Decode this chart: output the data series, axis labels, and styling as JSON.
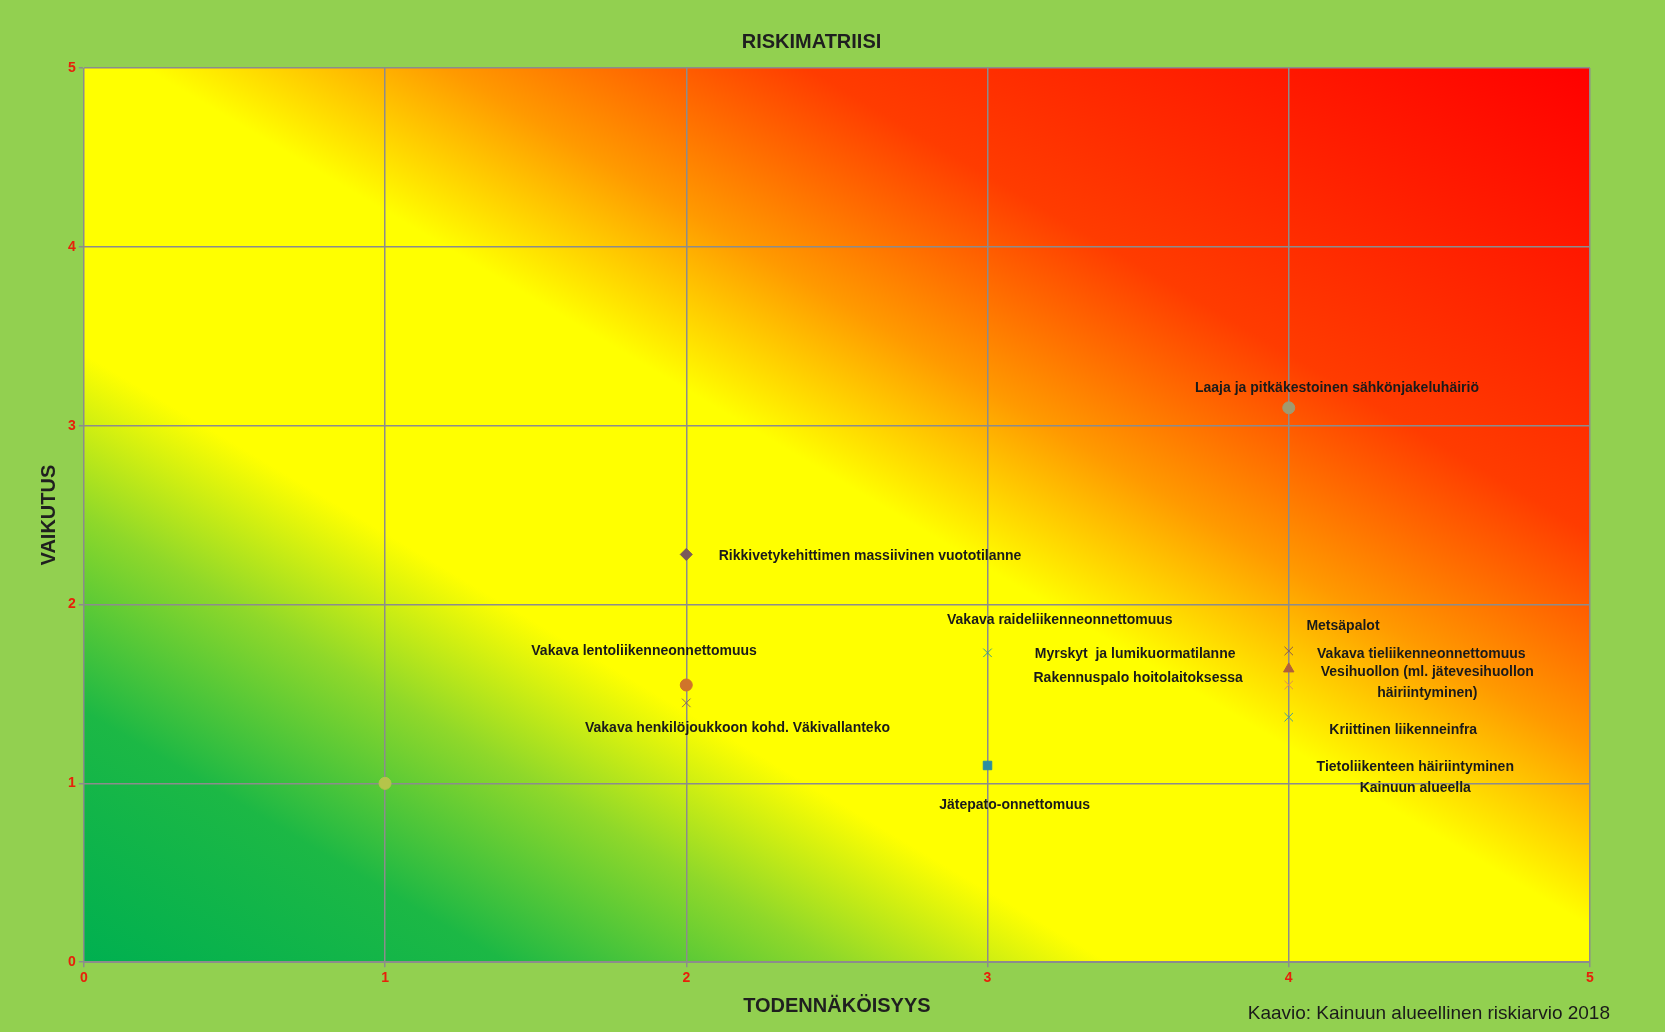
{
  "chart_data": {
    "type": "scatter",
    "title": "RISKIMATRIISI",
    "xlabel": "TODENNÄKÖISYYS",
    "ylabel": "VAIKUTUS",
    "xlim": [
      0,
      5
    ],
    "ylim": [
      0,
      5
    ],
    "xticks": [
      0,
      1,
      2,
      3,
      4,
      5
    ],
    "yticks": [
      0,
      1,
      2,
      3,
      4,
      5
    ],
    "grid": true,
    "series": [
      {
        "color": "#b5c44a",
        "marker": "circle",
        "x": [
          1
        ],
        "values": [
          1.0
        ]
      },
      {
        "color": "#7a5a5a",
        "marker": "diamond",
        "x": [
          2
        ],
        "values": [
          2.28
        ]
      },
      {
        "color": "#d0742a",
        "marker": "circle",
        "x": [
          2
        ],
        "values": [
          1.55
        ]
      },
      {
        "color": "#8a6a5a",
        "marker": "cross",
        "x": [
          2
        ],
        "values": [
          1.45
        ]
      },
      {
        "color": "#3a9a8a",
        "marker": "cross",
        "x": [
          3
        ],
        "values": [
          1.73
        ]
      },
      {
        "color": "#2e8ea0",
        "marker": "square",
        "x": [
          3
        ],
        "values": [
          1.1
        ]
      },
      {
        "color": "#a09a70",
        "marker": "circle",
        "x": [
          4
        ],
        "values": [
          3.1
        ]
      },
      {
        "color": "#8a5a4a",
        "marker": "cross",
        "x": [
          4
        ],
        "values": [
          1.74
        ]
      },
      {
        "color": "#b0603a",
        "marker": "triangle",
        "x": [
          4
        ],
        "values": [
          1.64
        ]
      },
      {
        "color": "#e09050",
        "marker": "cross",
        "x": [
          4
        ],
        "values": [
          1.55
        ]
      },
      {
        "color": "#4a9a9a",
        "marker": "cross",
        "x": [
          4
        ],
        "values": [
          1.37
        ]
      }
    ],
    "annotations": [
      "Rikkivetykehittimen massiivinen vuototilanne",
      "Vakava lentoliikenneonnettomuus",
      "Vakava henkilöjoukkoon kohd. Väkivallanteko",
      "Vakava raideliikenneonnettomuus",
      "Myrskyt  ja lumikuormatilanne",
      "Rakennuspalo hoitolaitoksessa",
      "Jätepato-onnettomuus",
      "Laaja ja pitkäkestoinen sähkönjakeluhäiriö",
      "Metsäpalot",
      "Vakava tieliikenneonnettomuus",
      "Vesihuollon (ml. jätevesihuollon\nhäiriintyminen)",
      "Kriittinen liikenneinfra",
      "Tietoliikenteen häiriintyminen\nKainuun alueella",
      "Kaavio: Kainuun alueellinen riskiarvio 2018"
    ]
  }
}
